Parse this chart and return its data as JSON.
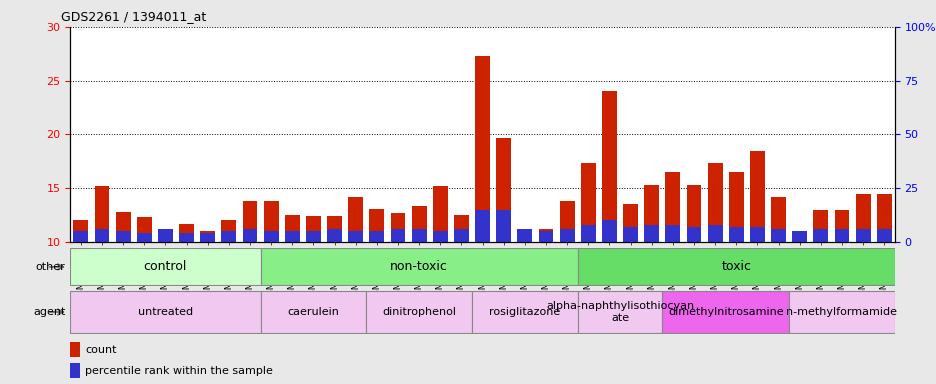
{
  "title": "GDS2261 / 1394011_at",
  "samples": [
    "GSM127079",
    "GSM127080",
    "GSM127081",
    "GSM127082",
    "GSM127083",
    "GSM127084",
    "GSM127085",
    "GSM127086",
    "GSM127087",
    "GSM127054",
    "GSM127055",
    "GSM127056",
    "GSM127057",
    "GSM127058",
    "GSM127064",
    "GSM127065",
    "GSM127066",
    "GSM127067",
    "GSM127068",
    "GSM127074",
    "GSM127075",
    "GSM127076",
    "GSM127077",
    "GSM127078",
    "GSM127049",
    "GSM127050",
    "GSM127051",
    "GSM127052",
    "GSM127053",
    "GSM127059",
    "GSM127060",
    "GSM127061",
    "GSM127062",
    "GSM127063",
    "GSM127069",
    "GSM127070",
    "GSM127071",
    "GSM127072",
    "GSM127073"
  ],
  "count": [
    12.0,
    15.2,
    12.8,
    12.3,
    10.5,
    11.7,
    11.0,
    12.0,
    13.8,
    13.8,
    12.5,
    12.4,
    12.4,
    14.2,
    13.1,
    12.7,
    13.3,
    15.2,
    12.5,
    27.3,
    19.7,
    11.1,
    11.2,
    13.8,
    17.3,
    24.0,
    13.5,
    15.3,
    16.5,
    15.3,
    17.3,
    16.5,
    18.5,
    14.2,
    10.8,
    13.0,
    13.0,
    14.5,
    14.5
  ],
  "percentile": [
    5,
    6,
    5,
    4,
    6,
    4,
    4,
    5,
    6,
    5,
    5,
    5,
    6,
    5,
    5,
    6,
    6,
    5,
    6,
    15,
    15,
    6,
    5,
    6,
    8,
    10,
    7,
    8,
    8,
    7,
    8,
    7,
    7,
    6,
    5,
    6,
    6,
    6,
    6
  ],
  "ylim_left": [
    10,
    30
  ],
  "ylim_right": [
    0,
    100
  ],
  "y_ticks_left": [
    10,
    15,
    20,
    25,
    30
  ],
  "y_ticks_right": [
    0,
    25,
    50,
    75,
    100
  ],
  "bar_color": "#cc2200",
  "percentile_color": "#3333cc",
  "groups_other": [
    {
      "label": "control",
      "start": 0,
      "end": 8,
      "color": "#ccffcc"
    },
    {
      "label": "non-toxic",
      "start": 9,
      "end": 23,
      "color": "#88ee88"
    },
    {
      "label": "toxic",
      "start": 24,
      "end": 38,
      "color": "#66dd66"
    }
  ],
  "groups_agent": [
    {
      "label": "untreated",
      "start": 0,
      "end": 8,
      "color": "#f0c8f0"
    },
    {
      "label": "caerulein",
      "start": 9,
      "end": 13,
      "color": "#f0c8f0"
    },
    {
      "label": "dinitrophenol",
      "start": 14,
      "end": 18,
      "color": "#f0c8f0"
    },
    {
      "label": "rosiglitazone",
      "start": 19,
      "end": 23,
      "color": "#f0c8f0"
    },
    {
      "label": "alpha-naphthylisothiocyan\nate",
      "start": 24,
      "end": 27,
      "color": "#f0c8f0"
    },
    {
      "label": "dimethylnitrosamine",
      "start": 28,
      "end": 33,
      "color": "#ee66ee"
    },
    {
      "label": "n-methylformamide",
      "start": 34,
      "end": 38,
      "color": "#f0c8f0"
    }
  ],
  "legend_count_label": "count",
  "legend_pct_label": "percentile rank within the sample",
  "xlabel_other": "other",
  "xlabel_agent": "agent",
  "background_color": "#e8e8e8",
  "plot_bg": "#ffffff"
}
